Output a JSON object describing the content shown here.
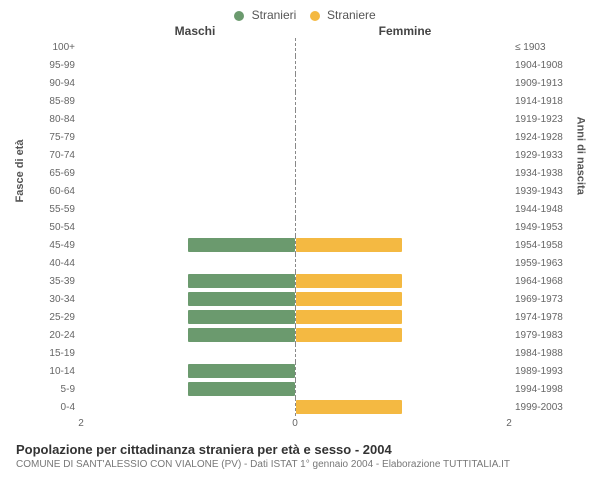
{
  "legend": {
    "items": [
      {
        "label": "Stranieri",
        "color": "#6b9a6e"
      },
      {
        "label": "Straniere",
        "color": "#f4b942"
      }
    ]
  },
  "columns": {
    "left": "Maschi",
    "right": "Femmine"
  },
  "axes": {
    "left_label": "Fasce di età",
    "right_label": "Anni di nascita",
    "x_max": 2,
    "x_ticks": [
      2,
      0,
      2
    ]
  },
  "colors": {
    "male_bar": "#6b9a6e",
    "female_bar": "#f4b942",
    "grid_dash": "#888888",
    "background": "#ffffff"
  },
  "rows": [
    {
      "age": "100+",
      "birth": "≤ 1903",
      "m": 0,
      "f": 0
    },
    {
      "age": "95-99",
      "birth": "1904-1908",
      "m": 0,
      "f": 0
    },
    {
      "age": "90-94",
      "birth": "1909-1913",
      "m": 0,
      "f": 0
    },
    {
      "age": "85-89",
      "birth": "1914-1918",
      "m": 0,
      "f": 0
    },
    {
      "age": "80-84",
      "birth": "1919-1923",
      "m": 0,
      "f": 0
    },
    {
      "age": "75-79",
      "birth": "1924-1928",
      "m": 0,
      "f": 0
    },
    {
      "age": "70-74",
      "birth": "1929-1933",
      "m": 0,
      "f": 0
    },
    {
      "age": "65-69",
      "birth": "1934-1938",
      "m": 0,
      "f": 0
    },
    {
      "age": "60-64",
      "birth": "1939-1943",
      "m": 0,
      "f": 0
    },
    {
      "age": "55-59",
      "birth": "1944-1948",
      "m": 0,
      "f": 0
    },
    {
      "age": "50-54",
      "birth": "1949-1953",
      "m": 0,
      "f": 0
    },
    {
      "age": "45-49",
      "birth": "1954-1958",
      "m": 1,
      "f": 1
    },
    {
      "age": "40-44",
      "birth": "1959-1963",
      "m": 0,
      "f": 0
    },
    {
      "age": "35-39",
      "birth": "1964-1968",
      "m": 1,
      "f": 1
    },
    {
      "age": "30-34",
      "birth": "1969-1973",
      "m": 1,
      "f": 1
    },
    {
      "age": "25-29",
      "birth": "1974-1978",
      "m": 1,
      "f": 1
    },
    {
      "age": "20-24",
      "birth": "1979-1983",
      "m": 1,
      "f": 1
    },
    {
      "age": "15-19",
      "birth": "1984-1988",
      "m": 0,
      "f": 0
    },
    {
      "age": "10-14",
      "birth": "1989-1993",
      "m": 1,
      "f": 0
    },
    {
      "age": "5-9",
      "birth": "1994-1998",
      "m": 1,
      "f": 0
    },
    {
      "age": "0-4",
      "birth": "1999-2003",
      "m": 0,
      "f": 1
    }
  ],
  "caption": "Popolazione per cittadinanza straniera per età e sesso - 2004",
  "subcaption": "COMUNE DI SANT'ALESSIO CON VIALONE (PV) - Dati ISTAT 1° gennaio 2004 - Elaborazione TUTTITALIA.IT"
}
